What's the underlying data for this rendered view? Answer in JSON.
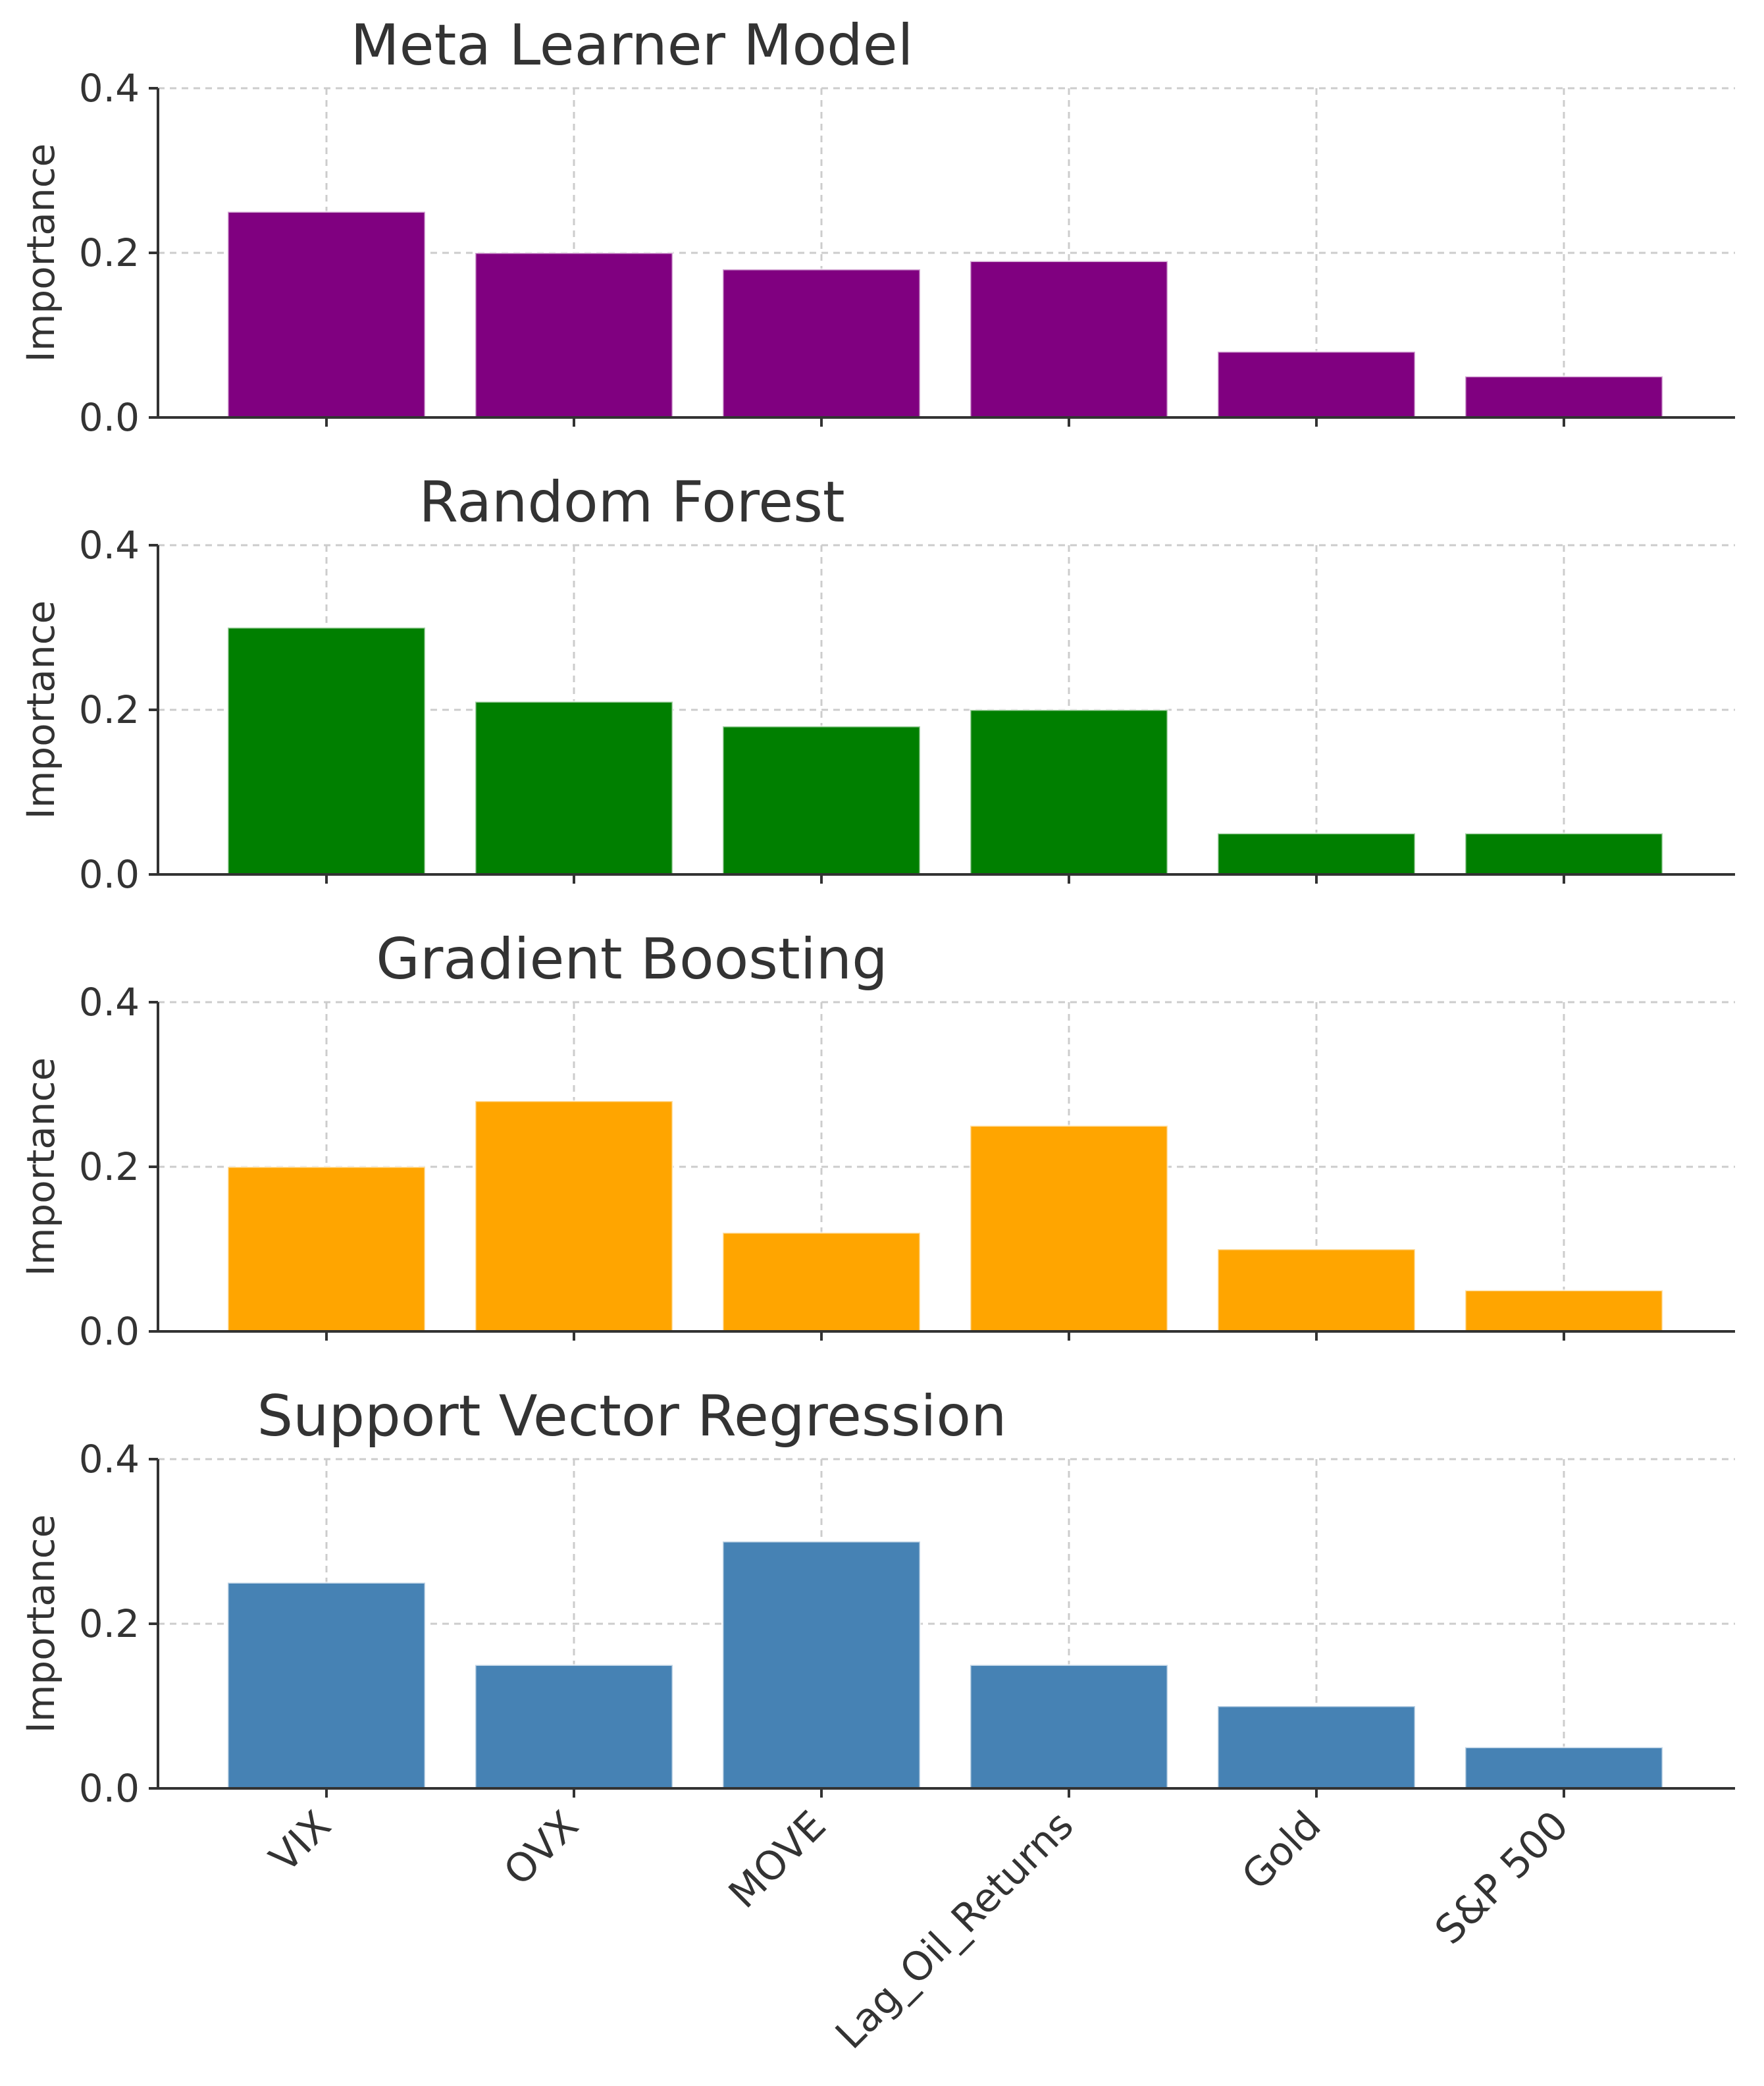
{
  "chart_data": [
    {
      "type": "bar",
      "title": "Meta Learner Model",
      "xlabel": "",
      "ylabel": "Importance",
      "ylim": [
        0,
        0.4
      ],
      "yticks": [
        "0.0",
        "0.2",
        "0.4"
      ],
      "grid": true,
      "color": "#800080",
      "categories": [
        "VIX",
        "OVX",
        "MOVE",
        "Lag_Oil_Returns",
        "Gold",
        "S&P 500"
      ],
      "values": [
        0.25,
        0.2,
        0.18,
        0.19,
        0.08,
        0.05
      ]
    },
    {
      "type": "bar",
      "title": "Random Forest",
      "xlabel": "",
      "ylabel": "Importance",
      "ylim": [
        0,
        0.4
      ],
      "yticks": [
        "0.0",
        "0.2",
        "0.4"
      ],
      "grid": true,
      "color": "#007f00",
      "categories": [
        "VIX",
        "OVX",
        "MOVE",
        "Lag_Oil_Returns",
        "Gold",
        "S&P 500"
      ],
      "values": [
        0.3,
        0.21,
        0.18,
        0.2,
        0.05,
        0.05
      ]
    },
    {
      "type": "bar",
      "title": "Gradient Boosting",
      "xlabel": "",
      "ylabel": "Importance",
      "ylim": [
        0,
        0.4
      ],
      "yticks": [
        "0.0",
        "0.2",
        "0.4"
      ],
      "grid": true,
      "color": "#ffa500",
      "categories": [
        "VIX",
        "OVX",
        "MOVE",
        "Lag_Oil_Returns",
        "Gold",
        "S&P 500"
      ],
      "values": [
        0.2,
        0.28,
        0.12,
        0.25,
        0.1,
        0.05
      ]
    },
    {
      "type": "bar",
      "title": "Support Vector Regression",
      "xlabel": "",
      "ylabel": "Importance",
      "ylim": [
        0,
        0.4
      ],
      "yticks": [
        "0.0",
        "0.2",
        "0.4"
      ],
      "grid": true,
      "color": "#4682b4",
      "categories": [
        "VIX",
        "OVX",
        "MOVE",
        "Lag_Oil_Returns",
        "Gold",
        "S&P 500"
      ],
      "values": [
        0.25,
        0.15,
        0.3,
        0.15,
        0.1,
        0.05
      ]
    }
  ]
}
